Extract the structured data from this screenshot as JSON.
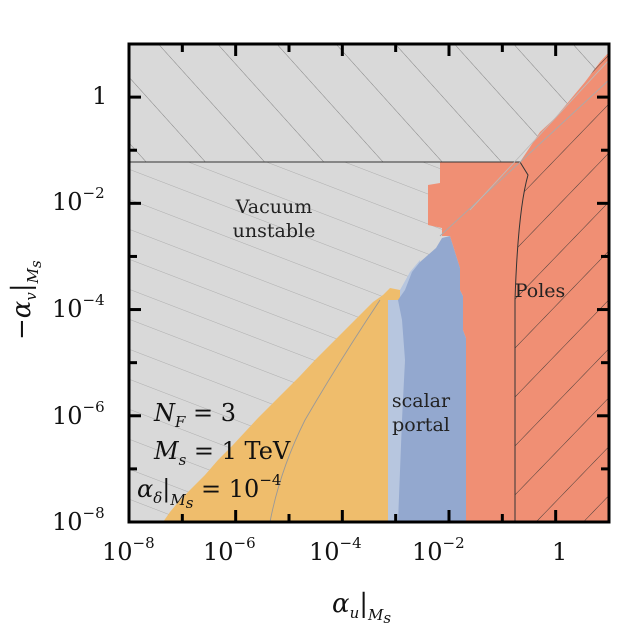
{
  "chart_data": {
    "type": "area",
    "xscale": "log",
    "yscale": "log",
    "xlim": [
      1e-08,
      10
    ],
    "ylim": [
      1e-08,
      10
    ],
    "x_ticks": [
      {
        "base": "10",
        "exp": "−8",
        "value": 1e-08
      },
      {
        "base": "10",
        "exp": "−6",
        "value": 1e-06
      },
      {
        "base": "10",
        "exp": "−4",
        "value": 0.0001
      },
      {
        "base": "10",
        "exp": "−2",
        "value": 0.01
      },
      {
        "base": "1",
        "exp": "",
        "value": 1
      }
    ],
    "y_ticks": [
      {
        "base": "10",
        "exp": "−8",
        "value": 1e-08
      },
      {
        "base": "10",
        "exp": "−6",
        "value": 1e-06
      },
      {
        "base": "10",
        "exp": "−4",
        "value": 0.0001
      },
      {
        "base": "10",
        "exp": "−2",
        "value": 0.01
      },
      {
        "base": "1",
        "exp": "",
        "value": 1
      }
    ],
    "xlabel": {
      "main": "α",
      "sub1": "u",
      "sub2": "M",
      "sub3": "s"
    },
    "ylabel": {
      "main": "−α",
      "sub1": "v",
      "sub2": "M",
      "sub3": "s"
    },
    "regions": [
      {
        "label_lines": [
          "Vacuum",
          "unstable"
        ],
        "color": "#d9d9d9",
        "label_pos": [
          0.0001,
          0.003
        ]
      },
      {
        "label_lines": [
          "Poles"
        ],
        "color": "#f08f74",
        "label_pos": [
          0.8,
          0.0001
        ]
      },
      {
        "label_lines": [
          "scalar",
          "portal"
        ],
        "color": "#93a8cf",
        "label_pos": [
          0.0025,
          1e-06
        ]
      },
      {
        "label_lines": [],
        "color": "#efbd6c"
      }
    ],
    "parameters": {
      "nf": {
        "main": "N",
        "sub": "F",
        "rest": " = 3"
      },
      "ms": {
        "main": "M",
        "sub": "s",
        "rest": " = 1 TeV"
      },
      "ad": {
        "main": "α",
        "sub": "δ",
        "sub2": "M",
        "sub3": "s",
        "rest": " = 10",
        "exp": "−4"
      }
    },
    "boundaries": {
      "horizontal_line_y": 0.05,
      "diagonal_corner_x": 0.3,
      "vertical_edge_x": 0.15
    }
  }
}
